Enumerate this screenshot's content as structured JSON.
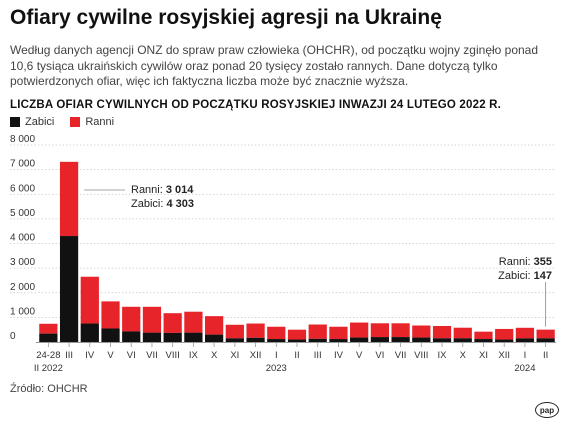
{
  "header": {
    "title": "Ofiary cywilne rosyjskiej agresji na Ukrainę",
    "description": "Według danych agencji ONZ do spraw praw człowieka (OHCHR), od początku wojny zginęło ponad 10,6 tysiąca ukraińskich cywilów oraz ponad 20 tysięcy zostało rannych. Dane dotyczą tylko potwierdzonych ofiar, więc ich faktyczna liczba może być znacznie wyższa."
  },
  "source": "Źródło: OHCHR",
  "logo_text": "pap",
  "colors": {
    "killed": "#111111",
    "wounded": "#e8242b",
    "axis": "#999999",
    "grid": "#c8c8c8",
    "text": "#333333"
  },
  "chart_data": {
    "type": "bar",
    "stacked": true,
    "title": "LICZBA OFIAR CYWILNYCH OD POCZĄTKU ROSYJSKIEJ INWAZJI 24 LUTEGO 2022 R.",
    "legend": [
      "Zabici",
      "Ranni"
    ],
    "legend_position": "top-left",
    "ylim": [
      0,
      8000
    ],
    "yticks": [
      "0",
      "1 000",
      "2 000",
      "3 000",
      "4 000",
      "5 000",
      "6 000",
      "7 000",
      "8 000"
    ],
    "grid": true,
    "categories": [
      "24-28",
      "III",
      "IV",
      "V",
      "VI",
      "VII",
      "VIII",
      "IX",
      "X",
      "XI",
      "XII",
      "I",
      "II",
      "III",
      "IV",
      "V",
      "VI",
      "VII",
      "VIII",
      "IX",
      "X",
      "XI",
      "XII",
      "I",
      "II"
    ],
    "year_labels": [
      {
        "label": "II 2022",
        "category_index": 0
      },
      {
        "label": "2023",
        "category_index": 11
      },
      {
        "label": "2024",
        "category_index": 23
      }
    ],
    "series": [
      {
        "name": "Zabici",
        "color": "#111111",
        "values": [
          340,
          4303,
          750,
          550,
          430,
          380,
          370,
          380,
          300,
          150,
          170,
          120,
          100,
          130,
          120,
          180,
          200,
          200,
          180,
          150,
          150,
          120,
          100,
          147,
          147
        ]
      },
      {
        "name": "Ranni",
        "color": "#e8242b",
        "values": [
          400,
          3014,
          1900,
          1100,
          1000,
          1050,
          800,
          850,
          750,
          550,
          580,
          500,
          400,
          580,
          500,
          610,
          560,
          560,
          490,
          500,
          430,
          300,
          430,
          430,
          355
        ]
      }
    ],
    "annotations": [
      {
        "category_index": 1,
        "ranni_label": "Ranni:",
        "ranni_value": "3 014",
        "zabici_label": "Zabici:",
        "zabici_value": "4 303"
      },
      {
        "category_index": 24,
        "ranni_label": "Ranni:",
        "ranni_value": "355",
        "zabici_label": "Zabici:",
        "zabici_value": "147"
      }
    ]
  }
}
